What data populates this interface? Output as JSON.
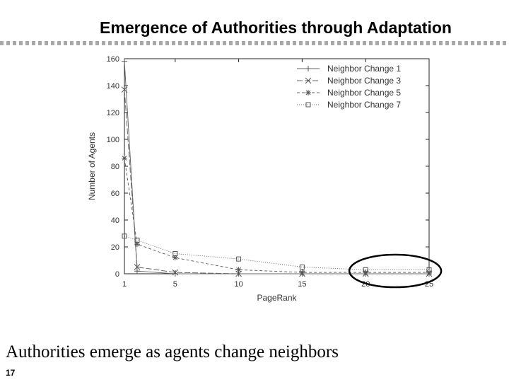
{
  "slide": {
    "title": "Emergence of Authorities through Adaptation",
    "caption": "Authorities emerge as agents change neighbors",
    "page_number": "17"
  },
  "chart_data": {
    "type": "line",
    "title": "",
    "xlabel": "PageRank",
    "ylabel": "Number of Agents",
    "xlim": [
      1,
      25
    ],
    "ylim": [
      0,
      160
    ],
    "xticks": [
      1,
      5,
      10,
      15,
      20,
      25
    ],
    "yticks": [
      0,
      20,
      40,
      60,
      80,
      100,
      120,
      140,
      160
    ],
    "legend_position": "top-right",
    "grid": false,
    "series": [
      {
        "name": "Neighbor Change 1",
        "marker": "plus",
        "dash": "",
        "x": [
          1,
          2,
          5,
          10,
          15,
          20,
          25
        ],
        "y": [
          158,
          2,
          0,
          0,
          0,
          0,
          0
        ]
      },
      {
        "name": "Neighbor Change 3",
        "marker": "x",
        "dash": "8 3",
        "x": [
          1,
          2,
          5,
          10,
          15,
          20,
          25
        ],
        "y": [
          137,
          5,
          1,
          0,
          0,
          0,
          0
        ]
      },
      {
        "name": "Neighbor Change 5",
        "marker": "star",
        "dash": "4 3",
        "x": [
          1,
          2,
          5,
          10,
          15,
          20,
          25
        ],
        "y": [
          86,
          22,
          12,
          3,
          1,
          1,
          1
        ]
      },
      {
        "name": "Neighbor Change 7",
        "marker": "square",
        "dash": "1 2",
        "x": [
          1,
          2,
          5,
          10,
          15,
          20,
          25
        ],
        "y": [
          28,
          25,
          15,
          11,
          5,
          3,
          3
        ]
      }
    ],
    "annotation": {
      "type": "ellipse",
      "around_x": [
        20,
        25
      ]
    }
  }
}
